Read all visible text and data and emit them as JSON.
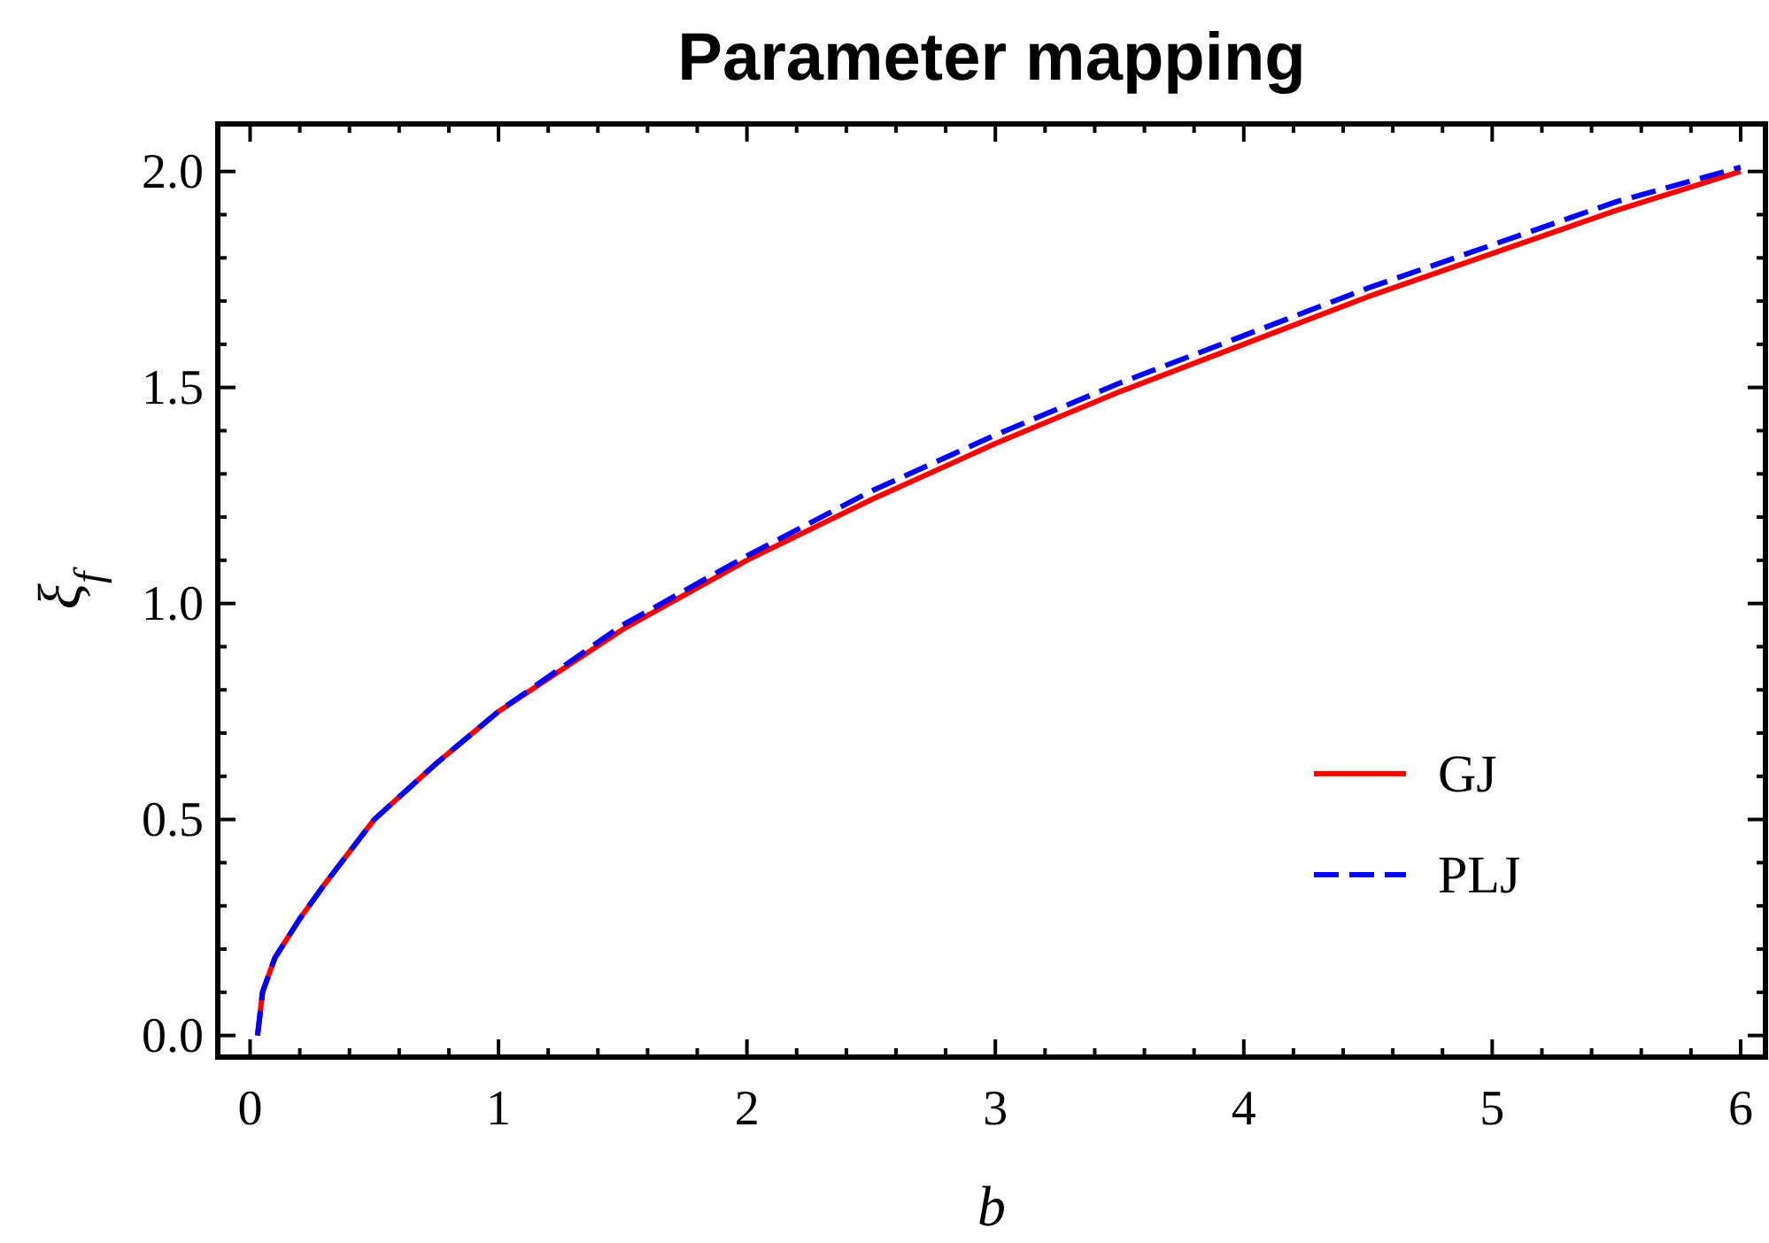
{
  "chart_data": {
    "type": "line",
    "title": "Parameter mapping",
    "xlabel": "b",
    "ylabel": "ξ$_{f}$",
    "xlim": [
      -0.13,
      6.1
    ],
    "ylim": [
      -0.05,
      2.11
    ],
    "xticks": [
      0,
      {
        "value": 0.2,
        "label": null
      },
      {
        "value": 0.4,
        "label": null
      },
      {
        "value": 0.6,
        "label": null
      },
      {
        "value": 0.8,
        "label": null
      },
      1,
      {
        "value": 1.2,
        "label": null
      },
      {
        "value": 1.4,
        "label": null
      },
      {
        "value": 1.6,
        "label": null
      },
      {
        "value": 1.8,
        "label": null
      },
      2,
      {
        "value": 2.2,
        "label": null
      },
      {
        "value": 2.4,
        "label": null
      },
      {
        "value": 2.6,
        "label": null
      },
      {
        "value": 2.8,
        "label": null
      },
      3,
      {
        "value": 3.2,
        "label": null
      },
      {
        "value": 3.4,
        "label": null
      },
      {
        "value": 3.6,
        "label": null
      },
      {
        "value": 3.8,
        "label": null
      },
      4,
      {
        "value": 4.2,
        "label": null
      },
      {
        "value": 4.4,
        "label": null
      },
      {
        "value": 4.6,
        "label": null
      },
      {
        "value": 4.8,
        "label": null
      },
      5,
      {
        "value": 5.2,
        "label": null
      },
      {
        "value": 5.4,
        "label": null
      },
      {
        "value": 5.6,
        "label": null
      },
      {
        "value": 5.8,
        "label": null
      },
      6
    ],
    "yticks": [
      {
        "value": 0,
        "label": "0.0"
      },
      {
        "value": 0.1,
        "label": null
      },
      {
        "value": 0.2,
        "label": null
      },
      {
        "value": 0.3,
        "label": null
      },
      {
        "value": 0.4,
        "label": null
      },
      0.5,
      {
        "value": 0.6,
        "label": null
      },
      {
        "value": 0.7,
        "label": null
      },
      {
        "value": 0.8,
        "label": null
      },
      {
        "value": 0.9,
        "label": null
      },
      {
        "value": 1,
        "label": "1.0"
      },
      {
        "value": 1.1,
        "label": null
      },
      {
        "value": 1.2,
        "label": null
      },
      {
        "value": 1.3,
        "label": null
      },
      {
        "value": 1.4,
        "label": null
      },
      1.5,
      {
        "value": 1.6,
        "label": null
      },
      {
        "value": 1.7,
        "label": null
      },
      {
        "value": 1.8,
        "label": null
      },
      {
        "value": 1.9,
        "label": null
      },
      {
        "value": 2,
        "label": "2.0"
      }
    ],
    "grid": false,
    "legend": "bottom right",
    "marker": "none",
    "series": [
      {
        "name": "GJ",
        "color": "#ff0000",
        "line_style": "solid",
        "x": [
          0.03,
          0.05,
          0.1,
          0.2,
          0.3,
          0.5,
          0.75,
          1,
          1.5,
          2,
          2.5,
          3,
          3.5,
          4,
          4.5,
          5,
          5.5,
          6
        ],
        "values": [
          0,
          0.1,
          0.18,
          0.27,
          0.35,
          0.5,
          0.63,
          0.75,
          0.94,
          1.1,
          1.24,
          1.37,
          1.49,
          1.6,
          1.71,
          1.81,
          1.91,
          2.0
        ]
      },
      {
        "name": "PLJ",
        "color": "#0000ff",
        "line_style": "dashed",
        "x": [
          0.03,
          0.05,
          0.1,
          0.2,
          0.3,
          0.5,
          0.75,
          1,
          1.5,
          2,
          2.5,
          3,
          3.5,
          4,
          4.5,
          5,
          5.5,
          6
        ],
        "values": [
          0,
          0.1,
          0.18,
          0.27,
          0.35,
          0.5,
          0.63,
          0.75,
          0.95,
          1.11,
          1.26,
          1.39,
          1.51,
          1.62,
          1.73,
          1.83,
          1.93,
          2.01
        ]
      }
    ]
  }
}
